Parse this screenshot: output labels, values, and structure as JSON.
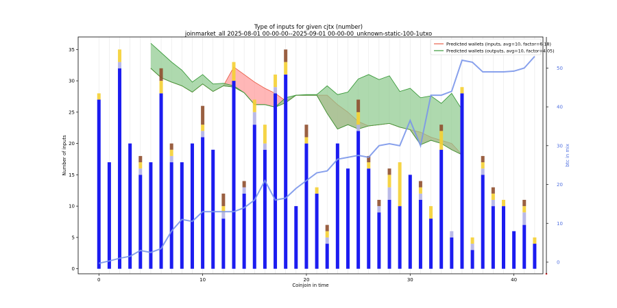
{
  "chart_data": {
    "type": "bar",
    "title": "Type of inputs for given cjtx (number)",
    "subtitle": "joinmarket_all 2025-08-01 00-00-00--2025-09-01 00-00-00_unknown-static-100-1utxo",
    "xlabel": "Coinjoin in time",
    "ylabel": "Number of inputs",
    "ylabel_right": "btc in mix",
    "xlim": [
      -2,
      42.8
    ],
    "ylim": [
      -0.8,
      37
    ],
    "ylim_right": [
      -3,
      58
    ],
    "x_ticks": [
      0,
      10,
      20,
      30,
      40
    ],
    "y_ticks": [
      0,
      5,
      10,
      15,
      20,
      25,
      30,
      35
    ],
    "y_ticks_right": [
      0,
      10,
      20,
      30,
      40,
      50
    ],
    "grid": "vertical",
    "legend_position": "top-right",
    "stack_series": [
      {
        "color": "#1c1cf0",
        "values": [
          27,
          17,
          32,
          20,
          15,
          17,
          28,
          17,
          17,
          20,
          21,
          19,
          8,
          30,
          12,
          23,
          19,
          28,
          31,
          10,
          20,
          12,
          4,
          20,
          16,
          22,
          16,
          9,
          11,
          10,
          15,
          11,
          8,
          19,
          5,
          28,
          3,
          15,
          10,
          10,
          6,
          7,
          4
        ]
      },
      {
        "color": "#b3b3e6",
        "values": [
          0,
          0,
          1,
          0,
          1,
          0,
          0,
          1,
          0,
          0,
          1,
          0,
          1,
          0,
          1,
          2,
          1,
          1,
          0,
          0,
          0,
          0,
          1,
          0,
          0,
          1,
          0,
          1,
          2,
          0,
          0,
          1,
          0,
          0,
          1,
          0,
          1,
          1,
          1,
          0,
          0,
          2,
          0
        ]
      },
      {
        "color": "#f5d033",
        "values": [
          1,
          0,
          2,
          0,
          1,
          0,
          2,
          1,
          0,
          0,
          1,
          0,
          1,
          3,
          0,
          2,
          3,
          2,
          2,
          0,
          1,
          1,
          1,
          0,
          0,
          2,
          1,
          0,
          2,
          7,
          0,
          1,
          2,
          3,
          0,
          1,
          1,
          1,
          1,
          1,
          0,
          1,
          1
        ]
      },
      {
        "color": "#8f4f2e",
        "values": [
          0,
          0,
          0,
          0,
          1,
          0,
          2,
          1,
          0,
          0,
          3,
          0,
          2,
          0,
          1,
          0,
          0,
          0,
          2,
          0,
          2,
          0,
          1,
          0,
          0,
          2,
          1,
          1,
          1,
          0,
          0,
          1,
          0,
          1,
          0,
          0,
          0,
          1,
          1,
          0,
          0,
          1,
          0
        ]
      }
    ],
    "btc_in_mix": [
      -0.3,
      0.3,
      1,
      1.5,
      3,
      2.5,
      3.5,
      8,
      11,
      10.5,
      13,
      13,
      13,
      13,
      14,
      16,
      21,
      16,
      16.5,
      19,
      21,
      23,
      23.5,
      26.5,
      27,
      27.5,
      27,
      30,
      30.5,
      30,
      36.5,
      30,
      43,
      43,
      44,
      52,
      51.5,
      49,
      49,
      49,
      49.2,
      50,
      53
    ],
    "series": [
      {
        "name": "Predicted wallets (inputs, avg=10, factor=6.18)",
        "line_color": "#e8604a",
        "fill_color": "#ff9999",
        "x": [
          5,
          6,
          7,
          8,
          9,
          10,
          11,
          12,
          13,
          14,
          15,
          16,
          17,
          18,
          19,
          20,
          21,
          22,
          23,
          24,
          25,
          26,
          27,
          28,
          29,
          30,
          31,
          32,
          33,
          34,
          35
        ],
        "upper": [
          32,
          30.5,
          29.8,
          29.2,
          28.2,
          29.5,
          28.3,
          29.2,
          32.2,
          31,
          29.8,
          28.8,
          28,
          26.8,
          27.7,
          27.7,
          27.7,
          27.7,
          26.2,
          25,
          23.5,
          22.8,
          23,
          23.2,
          22.6,
          22.2,
          21.8,
          21,
          20.5,
          20,
          18.2
        ],
        "lower": [
          32,
          30.5,
          29.8,
          29.2,
          28.2,
          29.5,
          28.3,
          29.2,
          29,
          28.1,
          26.2,
          26.2,
          25.8,
          26.5,
          27.7,
          27.7,
          27.7,
          24.8,
          22.3,
          23,
          22.3,
          22.8,
          23,
          23.2,
          22.6,
          22.2,
          19.8,
          20.5,
          20,
          19,
          18.2
        ]
      },
      {
        "name": "Predicted wallets (outputs, avg=10, factor=4.05)",
        "line_color": "#3a9a3a",
        "fill_color": "#8cc98c",
        "x": [
          5,
          6,
          7,
          8,
          9,
          10,
          11,
          12,
          13,
          14,
          15,
          16,
          17,
          18,
          19,
          20,
          21,
          22,
          23,
          24,
          25,
          26,
          27,
          28,
          29,
          30,
          31,
          32,
          33,
          34,
          35
        ],
        "upper": [
          36,
          34.5,
          33,
          31.7,
          29.8,
          31,
          29.5,
          29.6,
          29.2,
          28.1,
          26.2,
          26.2,
          25.8,
          27.3,
          27.7,
          27.8,
          27.8,
          29.2,
          27.8,
          28.2,
          30.3,
          31,
          30.2,
          30.8,
          28.3,
          28.8,
          27.3,
          27.6,
          26.4,
          28,
          25.4
        ],
        "lower": [
          32,
          30.5,
          29.8,
          29.2,
          28.2,
          29.5,
          28.3,
          29.2,
          29,
          28.1,
          26.2,
          26.2,
          25.8,
          26.5,
          27.7,
          27.7,
          27.7,
          24.8,
          22.3,
          23,
          22.3,
          22.8,
          23,
          23.2,
          22.6,
          22.2,
          19.8,
          20.5,
          20,
          19,
          18.2
        ]
      }
    ]
  }
}
